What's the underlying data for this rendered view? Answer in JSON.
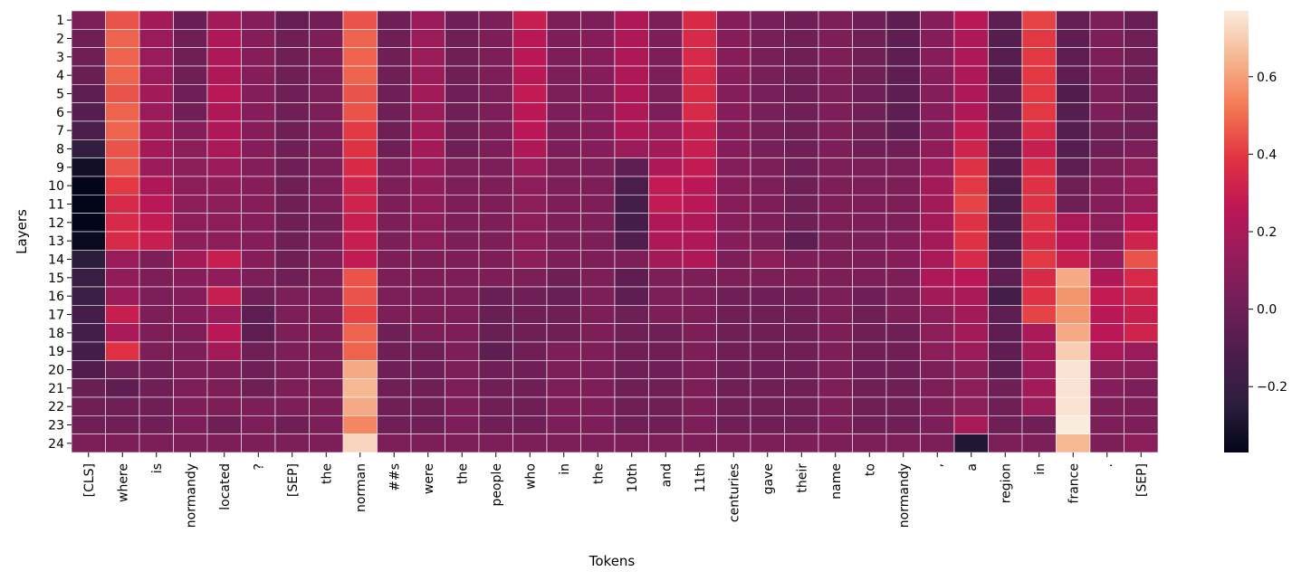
{
  "chart_data": {
    "type": "heatmap",
    "xlabel": "Tokens",
    "ylabel": "Layers",
    "x_categories": [
      "[CLS]",
      "where",
      "is",
      "normandy",
      "located",
      "?",
      "[SEP]",
      "the",
      "norman",
      "##s",
      "were",
      "the",
      "people",
      "who",
      "in",
      "the",
      "10th",
      "and",
      "11th",
      "centuries",
      "gave",
      "their",
      "name",
      "to",
      "normandy",
      ",",
      "a",
      "region",
      "in",
      "france",
      ".",
      "[SEP]"
    ],
    "y_categories": [
      "1",
      "2",
      "3",
      "4",
      "5",
      "6",
      "7",
      "8",
      "9",
      "10",
      "11",
      "12",
      "13",
      "14",
      "15",
      "16",
      "17",
      "18",
      "19",
      "20",
      "21",
      "22",
      "23",
      "24"
    ],
    "colorbar": {
      "min": -0.37,
      "max": 0.77,
      "ticks": [
        -0.2,
        0.0,
        0.2,
        0.4,
        0.6
      ],
      "tick_labels": [
        "−0.2",
        "0.0",
        "0.2",
        "0.4",
        "0.6"
      ]
    },
    "colormap": [
      "#03051a",
      "#2d1e3e",
      "#4c1d4b",
      "#701f57",
      "#951c5b",
      "#bd1655",
      "#e13342",
      "#f37651",
      "#f6b48f",
      "#faebdd"
    ],
    "values": [
      [
        0.05,
        0.45,
        0.18,
        -0.02,
        0.18,
        0.08,
        -0.03,
        0.02,
        0.45,
        0.0,
        0.15,
        0.0,
        0.05,
        0.3,
        0.05,
        0.05,
        0.22,
        0.05,
        0.35,
        0.08,
        0.03,
        0.0,
        0.05,
        0.0,
        -0.05,
        0.08,
        0.25,
        -0.05,
        0.42,
        -0.03,
        0.05,
        -0.02
      ],
      [
        0.0,
        0.48,
        0.15,
        0.0,
        0.22,
        0.08,
        0.0,
        0.05,
        0.48,
        0.0,
        0.15,
        0.0,
        0.05,
        0.25,
        0.05,
        0.08,
        0.22,
        0.05,
        0.35,
        0.08,
        0.03,
        0.0,
        0.05,
        0.0,
        -0.05,
        0.08,
        0.22,
        -0.08,
        0.4,
        -0.05,
        0.05,
        0.0
      ],
      [
        0.0,
        0.48,
        0.15,
        0.0,
        0.22,
        0.08,
        0.0,
        0.05,
        0.48,
        0.0,
        0.15,
        0.0,
        0.05,
        0.25,
        0.05,
        0.08,
        0.22,
        0.05,
        0.35,
        0.08,
        0.03,
        0.0,
        0.05,
        0.0,
        -0.05,
        0.08,
        0.22,
        -0.08,
        0.4,
        -0.05,
        0.05,
        0.0
      ],
      [
        -0.02,
        0.48,
        0.15,
        0.0,
        0.22,
        0.08,
        0.0,
        0.05,
        0.48,
        0.0,
        0.15,
        0.0,
        0.05,
        0.25,
        0.05,
        0.08,
        0.22,
        0.05,
        0.35,
        0.08,
        0.03,
        0.0,
        0.05,
        0.0,
        -0.05,
        0.08,
        0.22,
        -0.08,
        0.4,
        -0.05,
        0.05,
        0.0
      ],
      [
        -0.05,
        0.45,
        0.18,
        0.0,
        0.25,
        0.08,
        0.0,
        0.05,
        0.45,
        0.0,
        0.18,
        0.0,
        0.05,
        0.28,
        0.05,
        0.08,
        0.22,
        0.05,
        0.35,
        0.08,
        0.03,
        0.0,
        0.05,
        0.0,
        -0.05,
        0.08,
        0.22,
        -0.05,
        0.4,
        -0.1,
        0.05,
        0.0
      ],
      [
        -0.08,
        0.48,
        0.15,
        0.0,
        0.22,
        0.08,
        0.0,
        0.05,
        0.45,
        0.0,
        0.15,
        0.0,
        0.05,
        0.25,
        0.05,
        0.08,
        0.22,
        0.05,
        0.35,
        0.08,
        0.03,
        0.0,
        0.05,
        0.0,
        -0.05,
        0.08,
        0.22,
        -0.05,
        0.4,
        -0.08,
        0.05,
        0.0
      ],
      [
        -0.12,
        0.48,
        0.18,
        0.08,
        0.22,
        0.08,
        0.0,
        0.05,
        0.4,
        0.0,
        0.18,
        0.0,
        0.05,
        0.25,
        0.05,
        0.08,
        0.22,
        0.15,
        0.3,
        0.08,
        0.03,
        0.0,
        0.05,
        0.0,
        -0.05,
        0.08,
        0.28,
        -0.05,
        0.35,
        -0.08,
        0.0,
        0.0
      ],
      [
        -0.22,
        0.45,
        0.18,
        0.1,
        0.2,
        0.08,
        0.0,
        0.05,
        0.38,
        0.0,
        0.18,
        0.0,
        0.05,
        0.22,
        0.05,
        0.08,
        0.15,
        0.18,
        0.3,
        0.08,
        0.03,
        0.0,
        0.05,
        0.0,
        0.0,
        0.12,
        0.32,
        -0.08,
        0.3,
        -0.08,
        0.0,
        0.05
      ],
      [
        -0.32,
        0.45,
        0.15,
        0.1,
        0.15,
        0.08,
        0.0,
        0.05,
        0.35,
        0.05,
        0.15,
        0.05,
        0.05,
        0.15,
        0.05,
        0.05,
        -0.05,
        0.22,
        0.28,
        0.08,
        0.05,
        0.0,
        0.05,
        0.05,
        0.05,
        0.15,
        0.38,
        -0.1,
        0.35,
        -0.05,
        0.05,
        0.1
      ],
      [
        -0.37,
        0.4,
        0.22,
        0.1,
        0.12,
        0.08,
        0.0,
        0.05,
        0.32,
        0.05,
        0.12,
        0.05,
        0.05,
        0.1,
        0.05,
        0.05,
        -0.12,
        0.28,
        0.25,
        0.08,
        0.05,
        0.0,
        0.05,
        0.05,
        0.05,
        0.18,
        0.4,
        -0.12,
        0.38,
        0.0,
        0.08,
        0.15
      ],
      [
        -0.37,
        0.35,
        0.25,
        0.1,
        0.1,
        0.08,
        0.0,
        0.05,
        0.32,
        0.05,
        0.12,
        0.05,
        0.05,
        0.1,
        0.05,
        0.05,
        -0.15,
        0.28,
        0.25,
        0.08,
        0.05,
        0.0,
        0.05,
        0.05,
        0.05,
        0.18,
        0.42,
        -0.12,
        0.38,
        0.0,
        0.08,
        0.15
      ],
      [
        -0.37,
        0.35,
        0.28,
        0.1,
        0.1,
        0.08,
        0.0,
        0.02,
        0.3,
        0.05,
        0.1,
        0.05,
        0.05,
        0.1,
        0.05,
        0.05,
        -0.15,
        0.22,
        0.22,
        0.08,
        0.05,
        0.0,
        0.05,
        0.05,
        0.05,
        0.18,
        0.38,
        -0.1,
        0.38,
        0.2,
        0.1,
        0.25
      ],
      [
        -0.35,
        0.35,
        0.3,
        0.1,
        0.1,
        0.08,
        0.0,
        0.05,
        0.3,
        0.05,
        0.1,
        0.05,
        0.05,
        0.1,
        0.05,
        0.05,
        -0.1,
        0.22,
        0.22,
        0.08,
        0.05,
        -0.05,
        0.05,
        0.05,
        0.08,
        0.18,
        0.38,
        -0.1,
        0.35,
        0.25,
        0.1,
        0.32
      ],
      [
        -0.25,
        0.15,
        0.05,
        0.18,
        0.3,
        0.08,
        0.0,
        0.05,
        0.28,
        0.05,
        0.05,
        0.05,
        0.05,
        0.1,
        0.05,
        0.05,
        0.05,
        0.18,
        0.22,
        0.05,
        0.1,
        0.05,
        0.05,
        0.05,
        0.08,
        0.2,
        0.35,
        -0.08,
        0.4,
        0.3,
        0.15,
        0.45
      ],
      [
        -0.2,
        0.12,
        0.05,
        0.08,
        0.12,
        0.05,
        0.0,
        0.05,
        0.45,
        0.05,
        0.05,
        0.05,
        0.05,
        0.05,
        0.0,
        0.05,
        -0.05,
        0.05,
        0.05,
        0.05,
        0.05,
        0.05,
        0.05,
        0.05,
        0.05,
        0.22,
        0.25,
        -0.05,
        0.35,
        0.62,
        0.22,
        0.35
      ],
      [
        -0.18,
        0.15,
        0.05,
        0.08,
        0.3,
        0.0,
        0.05,
        0.05,
        0.45,
        0.05,
        0.05,
        0.05,
        -0.02,
        0.0,
        -0.02,
        0.05,
        -0.05,
        0.05,
        0.05,
        0.0,
        0.0,
        0.0,
        0.05,
        0.0,
        0.05,
        0.18,
        0.2,
        -0.15,
        0.38,
        0.58,
        0.28,
        0.32
      ],
      [
        -0.15,
        0.3,
        0.05,
        0.08,
        0.15,
        -0.05,
        0.05,
        0.05,
        0.42,
        0.05,
        0.05,
        0.05,
        -0.02,
        0.0,
        0.0,
        0.05,
        0.0,
        0.05,
        0.05,
        0.0,
        0.0,
        0.0,
        0.05,
        0.0,
        0.05,
        0.1,
        0.18,
        -0.05,
        0.42,
        0.58,
        0.25,
        0.3
      ],
      [
        -0.15,
        0.2,
        0.05,
        0.05,
        0.25,
        -0.05,
        0.05,
        0.05,
        0.48,
        0.0,
        0.05,
        0.05,
        -0.02,
        0.0,
        0.0,
        0.05,
        0.0,
        0.0,
        0.05,
        0.0,
        0.0,
        0.0,
        0.05,
        0.0,
        0.0,
        0.1,
        0.18,
        -0.05,
        0.2,
        0.62,
        0.25,
        0.32
      ],
      [
        -0.15,
        0.38,
        0.05,
        0.05,
        0.18,
        0.0,
        0.05,
        0.05,
        0.48,
        0.0,
        0.0,
        0.05,
        -0.05,
        0.0,
        0.05,
        0.05,
        0.0,
        0.0,
        0.05,
        0.0,
        0.0,
        0.0,
        0.05,
        0.0,
        0.0,
        0.1,
        0.15,
        -0.05,
        0.18,
        0.7,
        0.2,
        0.15
      ],
      [
        -0.1,
        0.0,
        0.0,
        0.05,
        0.05,
        0.0,
        0.05,
        0.05,
        0.62,
        0.0,
        0.0,
        0.05,
        0.0,
        0.0,
        0.05,
        0.05,
        0.0,
        0.0,
        0.05,
        0.0,
        0.0,
        0.0,
        0.05,
        0.0,
        0.0,
        0.05,
        0.1,
        -0.05,
        0.15,
        0.75,
        0.1,
        0.1
      ],
      [
        -0.02,
        -0.05,
        0.0,
        0.05,
        0.05,
        0.0,
        0.05,
        0.05,
        0.65,
        0.0,
        0.0,
        0.05,
        0.0,
        0.0,
        0.05,
        0.05,
        0.0,
        0.0,
        0.05,
        0.0,
        0.0,
        0.0,
        0.05,
        0.0,
        0.0,
        0.05,
        0.1,
        0.0,
        0.18,
        0.75,
        0.08,
        0.05
      ],
      [
        0.0,
        0.0,
        0.0,
        0.05,
        0.05,
        0.05,
        0.05,
        0.05,
        0.62,
        0.0,
        0.0,
        0.05,
        0.0,
        0.0,
        0.05,
        0.05,
        0.0,
        0.0,
        0.05,
        0.0,
        0.0,
        0.0,
        0.05,
        0.0,
        0.0,
        0.05,
        0.1,
        0.0,
        0.15,
        0.75,
        0.05,
        0.05
      ],
      [
        0.0,
        0.0,
        0.0,
        0.05,
        0.0,
        0.05,
        0.0,
        0.05,
        0.55,
        0.0,
        0.0,
        0.05,
        0.0,
        0.0,
        0.05,
        0.05,
        0.0,
        0.0,
        0.05,
        0.0,
        0.0,
        0.0,
        0.05,
        0.0,
        0.0,
        0.05,
        0.2,
        0.0,
        0.0,
        0.77,
        0.05,
        0.05
      ],
      [
        0.05,
        0.05,
        0.05,
        0.05,
        0.05,
        0.05,
        0.05,
        0.05,
        0.72,
        0.05,
        0.05,
        0.05,
        0.05,
        0.05,
        0.05,
        0.05,
        0.05,
        0.05,
        0.05,
        0.05,
        0.05,
        0.05,
        0.05,
        0.05,
        0.05,
        0.05,
        -0.28,
        0.05,
        0.05,
        0.65,
        0.05,
        0.1
      ]
    ]
  }
}
